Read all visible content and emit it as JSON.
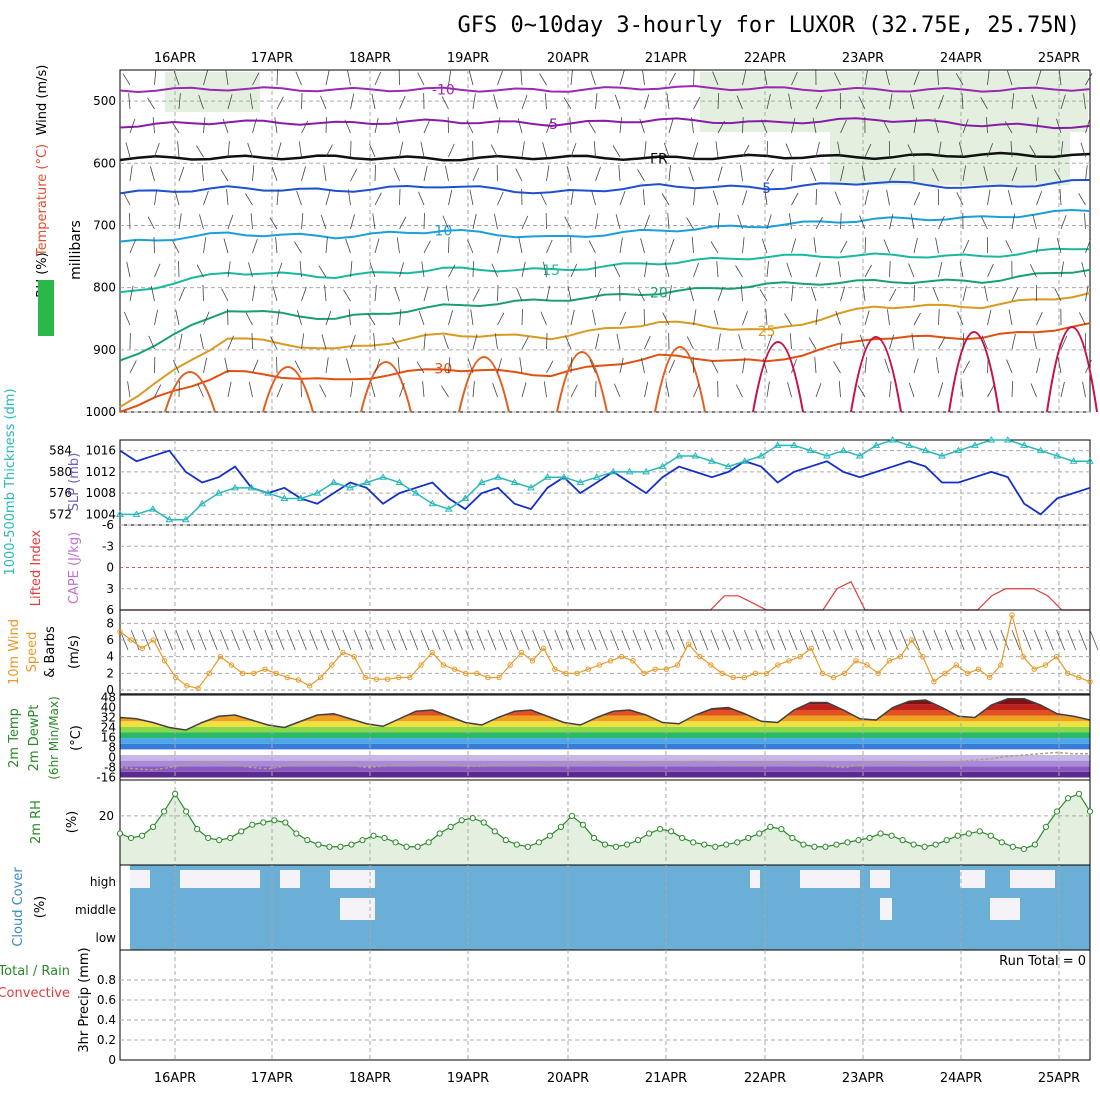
{
  "title": "GFS 0~10day 3-hourly for LUXOR (32.75E, 25.75N)",
  "colors": {
    "grid": "#aaaaaa",
    "slp": "#1530c8",
    "thickness": "#2ab8b8",
    "temp": "#404040",
    "rh": "#2a8a2a",
    "rh_fill": "#e3f0e0",
    "wind10": "#e89a2a",
    "cloud": "#6baed6",
    "cloud_clear": "#f5f3f8",
    "lifted": "#e03c3c"
  },
  "dates": [
    "16APR",
    "17APR",
    "18APR",
    "19APR",
    "20APR",
    "21APR",
    "22APR",
    "23APR",
    "24APR",
    "25APR"
  ],
  "chart_data": [
    {
      "type": "line",
      "panel": "upper-air",
      "ylabel_parts": [
        "RH (%)",
        "Temperature (°C)",
        "Wind (m/s)"
      ],
      "ylabel": "millibars",
      "yticks": [
        500,
        600,
        700,
        800,
        900,
        1000
      ],
      "ylim": [
        1000,
        450
      ],
      "contour_labels": [
        "-10",
        "-5",
        "FR",
        "5",
        "10",
        "15",
        "20",
        "25",
        "30"
      ],
      "temperature_contours": [
        {
          "level": "-10",
          "color": "#9a2ab0",
          "p": [
            483,
            480,
            482,
            481,
            483,
            478,
            480,
            482,
            482,
            480
          ]
        },
        {
          "level": "-5",
          "color": "#8a1aa8",
          "p": [
            540,
            533,
            536,
            532,
            537,
            530,
            535,
            529,
            538,
            542
          ]
        },
        {
          "level": "FR",
          "color": "#101010",
          "p": [
            592,
            591,
            590,
            593,
            590,
            592,
            589,
            590,
            586,
            588
          ]
        },
        {
          "level": "5",
          "color": "#1e50d0",
          "p": [
            648,
            640,
            644,
            636,
            648,
            636,
            640,
            630,
            640,
            628
          ]
        },
        {
          "level": "10",
          "color": "#1aa0d8",
          "p": [
            728,
            713,
            718,
            708,
            720,
            708,
            700,
            690,
            688,
            675
          ]
        },
        {
          "level": "15",
          "color": "#1ab8a0",
          "p": [
            810,
            775,
            782,
            770,
            772,
            760,
            750,
            748,
            750,
            735
          ]
        },
        {
          "level": "20",
          "color": "#1aa070",
          "p": [
            918,
            835,
            850,
            830,
            820,
            808,
            795,
            790,
            790,
            770
          ]
        },
        {
          "level": "25",
          "color": "#d89a20",
          "p": [
            990,
            880,
            900,
            875,
            880,
            855,
            870,
            830,
            830,
            810
          ]
        },
        {
          "level": "30",
          "color": "#e05010",
          "p": [
            1000,
            935,
            950,
            930,
            940,
            910,
            920,
            880,
            880,
            860
          ]
        }
      ]
    },
    {
      "type": "line",
      "panel": "slp-thickness",
      "ylabel": "1000-500mb Thickness (dm)",
      "ylabel2": "SLP (mb)",
      "yticks_left": [
        "584",
        "580",
        "576",
        "572"
      ],
      "yticks_right": [
        "1016",
        "1012",
        "1008",
        "1004"
      ],
      "series": [
        {
          "name": "SLP (mb)",
          "unit": "mb",
          "values": [
            1016,
            1014,
            1015,
            1016,
            1012,
            1010,
            1011,
            1013,
            1009,
            1008,
            1009,
            1007,
            1006,
            1008,
            1010,
            1009,
            1006,
            1008,
            1009,
            1010,
            1007,
            1005,
            1008,
            1009,
            1006,
            1005,
            1009,
            1011,
            1008,
            1010,
            1012,
            1010,
            1008,
            1011,
            1013,
            1012,
            1011,
            1012,
            1014,
            1013,
            1010,
            1012,
            1013,
            1014,
            1012,
            1011,
            1012,
            1013,
            1014,
            1013,
            1010,
            1010,
            1011,
            1012,
            1011,
            1006,
            1004,
            1007,
            1008,
            1009
          ]
        },
        {
          "name": "Thickness (dm)",
          "unit": "dm",
          "values": [
            572,
            572,
            573,
            571,
            571,
            574,
            576,
            577,
            577,
            576,
            575,
            575,
            576,
            578,
            577,
            578,
            579,
            578,
            576,
            574,
            573,
            575,
            578,
            579,
            578,
            577,
            579,
            579,
            578,
            579,
            580,
            580,
            580,
            581,
            583,
            583,
            582,
            581,
            582,
            583,
            585,
            585,
            584,
            583,
            584,
            583,
            585,
            586,
            585,
            584,
            583,
            584,
            585,
            586,
            586,
            585,
            584,
            583,
            582,
            582
          ]
        }
      ]
    },
    {
      "type": "line",
      "panel": "lifted-index",
      "ylabel": "Lifted Index",
      "ylabel2": "CAPE (J/kg)",
      "yticks": [
        "-6",
        "-3",
        "0",
        "3",
        "6"
      ],
      "series": [
        {
          "name": "Lifted Index",
          "values": [
            9,
            9,
            9,
            9,
            9,
            9,
            9,
            9,
            9,
            9,
            9,
            9,
            9,
            9,
            9,
            9,
            9,
            9,
            9,
            9,
            9,
            9,
            9,
            9,
            9,
            9,
            9,
            9,
            9,
            9,
            9,
            9,
            9,
            9,
            9,
            9,
            9,
            9,
            9,
            9,
            9,
            9,
            6,
            4,
            4,
            5,
            9,
            9,
            9,
            9,
            9,
            3,
            2,
            9,
            9,
            9,
            9,
            9,
            9,
            9,
            9,
            9,
            4,
            3,
            3,
            3,
            4,
            6,
            9,
            6
          ]
        }
      ]
    },
    {
      "type": "line",
      "panel": "wind10m",
      "ylabel": "10m Wind Speed & Barbs",
      "yunit": "(m/s)",
      "yticks": [
        "0",
        "2",
        "4",
        "6",
        "8"
      ],
      "series": [
        {
          "name": "10m Wind Speed",
          "values": [
            7,
            6,
            5,
            6,
            3.5,
            1.5,
            0.5,
            0.2,
            2,
            4,
            3,
            2,
            2,
            2.5,
            2,
            1.5,
            1.2,
            0.5,
            1.5,
            3,
            4.5,
            4,
            1.5,
            1.3,
            1.3,
            1.5,
            1.5,
            3,
            4.5,
            3,
            2.5,
            2,
            2,
            1.5,
            1.5,
            3,
            4.5,
            3.5,
            5,
            2.5,
            2,
            2,
            2.5,
            3,
            3.5,
            4,
            3.5,
            2,
            2.5,
            2.5,
            3,
            5.5,
            4,
            3,
            2,
            1.5,
            1.5,
            2,
            2,
            3,
            3.5,
            4,
            5,
            2,
            1.5,
            2,
            3.5,
            3,
            2,
            3.5,
            4,
            6,
            4,
            1,
            2,
            3,
            2,
            2.5,
            1.5,
            3,
            9,
            4,
            2.5,
            3,
            4,
            2,
            1.5,
            1
          ]
        }
      ]
    },
    {
      "type": "area",
      "panel": "temp2m",
      "ylabel": "2m Temp 2m DewPt (6hr Min/Max)",
      "yunit": "(°C)",
      "yticks": [
        "-16",
        "-8",
        "0",
        "8",
        "16",
        "24",
        "32",
        "40",
        "48"
      ],
      "series": [
        {
          "name": "2m Temp",
          "values": [
            32,
            31,
            28,
            24,
            22,
            28,
            33,
            34,
            30,
            26,
            24,
            29,
            34,
            35,
            31,
            27,
            25,
            31,
            37,
            38,
            33,
            28,
            26,
            32,
            37,
            38,
            33,
            28,
            26,
            32,
            37,
            38,
            34,
            28,
            27,
            34,
            39,
            40,
            35,
            29,
            28,
            38,
            44,
            44,
            38,
            31,
            30,
            40,
            45,
            46,
            40,
            33,
            32,
            42,
            47,
            47,
            42,
            35,
            33,
            30
          ]
        },
        {
          "name": "2m DewPt",
          "values": [
            -8,
            -9,
            -10,
            -8,
            -6,
            -3,
            -4,
            -6,
            -8,
            -9,
            -7,
            -5,
            -5,
            -5,
            -6,
            -8,
            -7,
            -6,
            -5,
            -4,
            -6,
            -7,
            -7,
            -6,
            -5,
            -6,
            -7,
            -5,
            -4,
            -3,
            -5,
            -6,
            -5,
            -4,
            -4,
            -3,
            -3,
            -5,
            -6,
            -5,
            -4,
            -5,
            -6,
            -7,
            -8,
            -6,
            -4,
            -4,
            -5,
            -6,
            -5,
            -3,
            -2,
            -1,
            1,
            2,
            3,
            4,
            3,
            3
          ]
        }
      ]
    },
    {
      "type": "area",
      "panel": "rh2m",
      "ylabel": "2m RH",
      "yunit": "(%)",
      "yticks": [
        "20"
      ],
      "series": [
        {
          "name": "2m RH",
          "values": [
            12,
            10,
            11,
            15,
            22,
            30,
            22,
            14,
            10,
            9,
            10,
            13,
            16,
            17,
            18,
            17,
            12,
            9,
            7,
            6,
            6,
            7,
            9,
            11,
            10,
            8,
            6,
            6,
            8,
            12,
            15,
            18,
            19,
            17,
            13,
            9,
            7,
            6,
            8,
            11,
            15,
            20,
            16,
            10,
            7,
            6,
            7,
            9,
            12,
            14,
            13,
            10,
            8,
            7,
            6,
            7,
            8,
            10,
            12,
            15,
            14,
            10,
            7,
            6,
            6,
            7,
            8,
            9,
            10,
            12,
            11,
            9,
            7,
            6,
            7,
            9,
            11,
            12,
            13,
            11,
            8,
            6,
            5,
            7,
            15,
            22,
            28,
            30,
            22
          ]
        }
      ]
    },
    {
      "type": "bar",
      "panel": "cloud-cover",
      "ylabel": "Cloud Cover",
      "yunit": "(%)",
      "layers": [
        "high",
        "middle",
        "low"
      ]
    },
    {
      "type": "bar",
      "panel": "precip",
      "ylabel": "3hr Precip (mm)",
      "ylabel_total": "Total / Rain",
      "ylabel_conv": "Convective",
      "run_total": "Run Total = 0",
      "yticks": [
        "0",
        "0.2",
        "0.4",
        "0.6",
        "0.8"
      ],
      "ylim": [
        0,
        1
      ],
      "values": []
    }
  ]
}
